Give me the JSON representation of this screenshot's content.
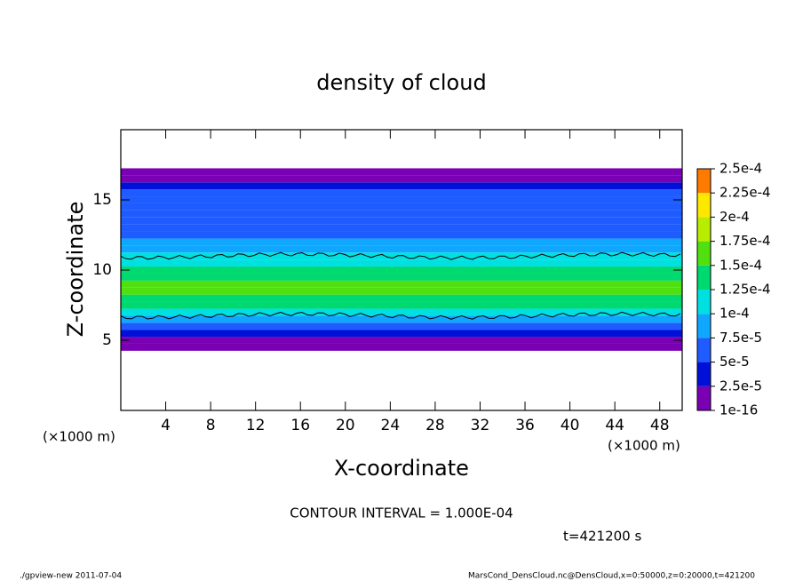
{
  "chart_data": {
    "type": "heatmap",
    "title": "density of cloud",
    "xlabel": "X-coordinate",
    "ylabel": "Z-coordinate",
    "x_unit_left": "(×1000 m)",
    "x_unit_right": "(×1000 m)",
    "xlim": [
      0,
      50
    ],
    "xticks": [
      4,
      8,
      12,
      16,
      20,
      24,
      28,
      32,
      36,
      40,
      44,
      48
    ],
    "ylim": [
      0,
      20
    ],
    "yticks": [
      5,
      10,
      15
    ],
    "density": {
      "z": [
        4.5,
        5,
        5.5,
        6,
        6.5,
        7,
        7.5,
        8,
        8.5,
        9,
        9.5,
        10,
        10.5,
        11,
        11.5,
        12,
        12.5,
        13,
        13.5,
        14,
        14.5,
        15,
        15.5,
        16,
        16.5,
        17
      ],
      "values": [
        5e-06,
        1e-05,
        3e-05,
        6e-05,
        9e-05,
        0.00011,
        0.00013,
        0.000145,
        0.000155,
        0.000155,
        0.000145,
        0.00013,
        0.000115,
        0.0001,
        8.5e-05,
        7.5e-05,
        7e-05,
        6.5e-05,
        6.2e-05,
        6e-05,
        5.7e-05,
        5.5e-05,
        5e-05,
        3e-05,
        1e-05,
        5e-06
      ]
    },
    "colorbar": {
      "ticks": [
        {
          "value": 1e-16,
          "label": "1e-16"
        },
        {
          "value": 2.5e-05,
          "label": "2.5e-5"
        },
        {
          "value": 5e-05,
          "label": "5e-5"
        },
        {
          "value": 7.5e-05,
          "label": "7.5e-5"
        },
        {
          "value": 0.0001,
          "label": "1e-4"
        },
        {
          "value": 0.000125,
          "label": "1.25e-4"
        },
        {
          "value": 0.00015,
          "label": "1.5e-4"
        },
        {
          "value": 0.000175,
          "label": "1.75e-4"
        },
        {
          "value": 0.0002,
          "label": "2e-4"
        },
        {
          "value": 0.000225,
          "label": "2.25e-4"
        },
        {
          "value": 0.00025,
          "label": "2.5e-4"
        }
      ],
      "colors": [
        "#7a00b4",
        "#0010d8",
        "#1e5cff",
        "#10a8ff",
        "#00e0e0",
        "#00d870",
        "#50e010",
        "#b8ec00",
        "#ffe800",
        "#ff7a00",
        "#ff9090"
      ]
    },
    "contour_text": "CONTOUR INTERVAL = 1.000E-04",
    "time_text": "t=421200 s",
    "footer_left": "./gpview-new  2011-07-04",
    "footer_right": "MarsCond_DensCloud.nc@DensCloud,x=0:50000,z=0:20000,t=421200"
  }
}
